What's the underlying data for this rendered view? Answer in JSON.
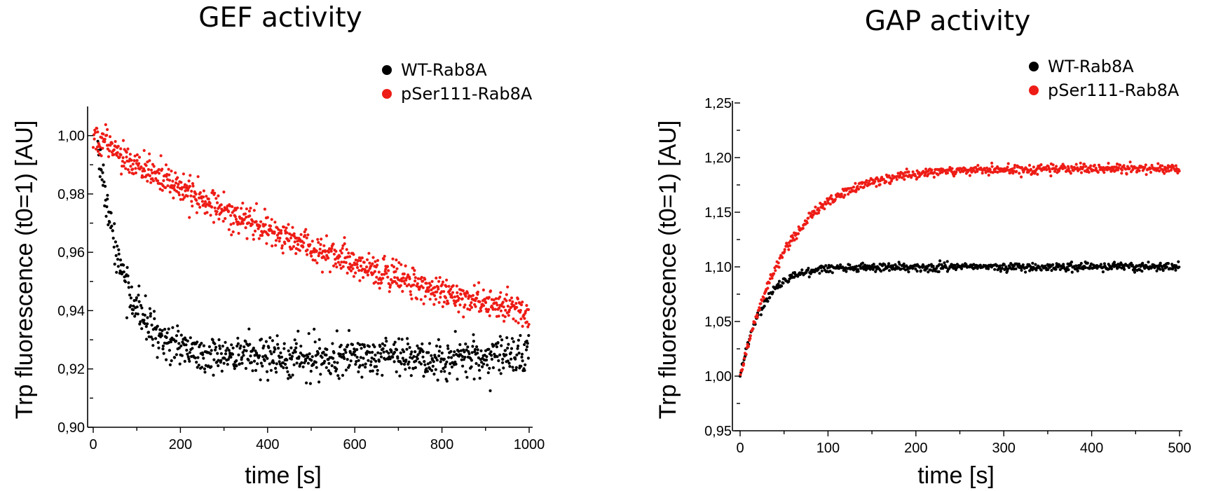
{
  "chart_data": [
    {
      "type": "scatter",
      "title": "GEF activity",
      "xlabel": "time [s]",
      "ylabel": "Trp fluorescence (t0=1) [AU]",
      "xlim": [
        0,
        1000
      ],
      "ylim": [
        0.9,
        1.01
      ],
      "xticks": [
        0,
        200,
        400,
        600,
        800,
        1000
      ],
      "xtick_labels": [
        "0",
        "200",
        "400",
        "600",
        "800",
        "1000"
      ],
      "yticks": [
        0.9,
        0.92,
        0.94,
        0.96,
        0.98,
        1.0
      ],
      "ytick_labels": [
        "0,90",
        "0,92",
        "0,94",
        "0,96",
        "0,98",
        "1,00"
      ],
      "grid": false,
      "legend_position": "top-right",
      "series": [
        {
          "name": "WT-Rab8A",
          "color": "#000000",
          "model": {
            "form": "exp_decay",
            "y0": 1.0,
            "plateau": 0.924,
            "tau_s": 60,
            "x_start": 10,
            "x_end": 1000,
            "n_points": 830,
            "noise": 0.0035
          },
          "x": [
            10,
            20,
            30,
            40,
            50,
            60,
            80,
            100,
            120,
            150,
            200,
            250,
            300,
            400,
            500,
            600,
            700,
            800,
            900,
            1000
          ],
          "y": [
            0.988,
            0.983,
            0.976,
            0.969,
            0.963,
            0.958,
            0.95,
            0.944,
            0.939,
            0.935,
            0.93,
            0.927,
            0.926,
            0.925,
            0.924,
            0.924,
            0.924,
            0.924,
            0.924,
            0.924
          ]
        },
        {
          "name": "pSer111-Rab8A",
          "color": "#ee1c16",
          "model": {
            "form": "exp_decay",
            "y0": 1.0,
            "plateau": 0.91,
            "tau_s": 900,
            "x_start": 0,
            "x_end": 1000,
            "n_points": 900,
            "noise": 0.0026
          },
          "x": [
            0,
            50,
            100,
            200,
            300,
            400,
            500,
            600,
            700,
            800,
            900,
            1000
          ],
          "y": [
            1.0,
            0.995,
            0.99,
            0.979,
            0.97,
            0.962,
            0.955,
            0.949,
            0.944,
            0.939,
            0.935,
            0.932
          ]
        }
      ]
    },
    {
      "type": "scatter",
      "title": "GAP activity",
      "xlabel": "time [s]",
      "ylabel": "Trp fluorescence (t0=1) [AU]",
      "xlim": [
        0,
        500
      ],
      "ylim": [
        0.95,
        1.25
      ],
      "xticks": [
        0,
        100,
        200,
        300,
        400,
        500
      ],
      "xtick_labels": [
        "0",
        "100",
        "200",
        "300",
        "400",
        "500"
      ],
      "yticks": [
        0.95,
        1.0,
        1.05,
        1.1,
        1.15,
        1.2,
        1.25
      ],
      "ytick_labels": [
        "0,95",
        "1,00",
        "1,05",
        "1,10",
        "1,15",
        "1,20",
        "1,25"
      ],
      "grid": false,
      "legend_position": "top-right",
      "series": [
        {
          "name": "WT-Rab8A",
          "color": "#000000",
          "model": {
            "form": "exp_rise",
            "y0": 1.0,
            "plateau": 1.1,
            "tau_s": 25,
            "x_start": 0,
            "x_end": 500,
            "n_points": 640,
            "noise": 0.0018
          },
          "x": [
            0,
            10,
            20,
            30,
            50,
            75,
            100,
            150,
            200,
            300,
            400,
            500
          ],
          "y": [
            1.0,
            1.033,
            1.055,
            1.07,
            1.087,
            1.096,
            1.099,
            1.1,
            1.1,
            1.1,
            1.1,
            1.1
          ]
        },
        {
          "name": "pSer111-Rab8A",
          "color": "#ee1c16",
          "model": {
            "form": "exp_rise",
            "y0": 1.0,
            "plateau": 1.19,
            "tau_s": 55,
            "x_start": 0,
            "x_end": 500,
            "n_points": 640,
            "noise": 0.0022
          },
          "x": [
            0,
            20,
            50,
            100,
            150,
            200,
            250,
            300,
            400,
            500
          ],
          "y": [
            1.0,
            1.055,
            1.113,
            1.159,
            1.178,
            1.185,
            1.188,
            1.189,
            1.19,
            1.19
          ]
        }
      ]
    }
  ]
}
